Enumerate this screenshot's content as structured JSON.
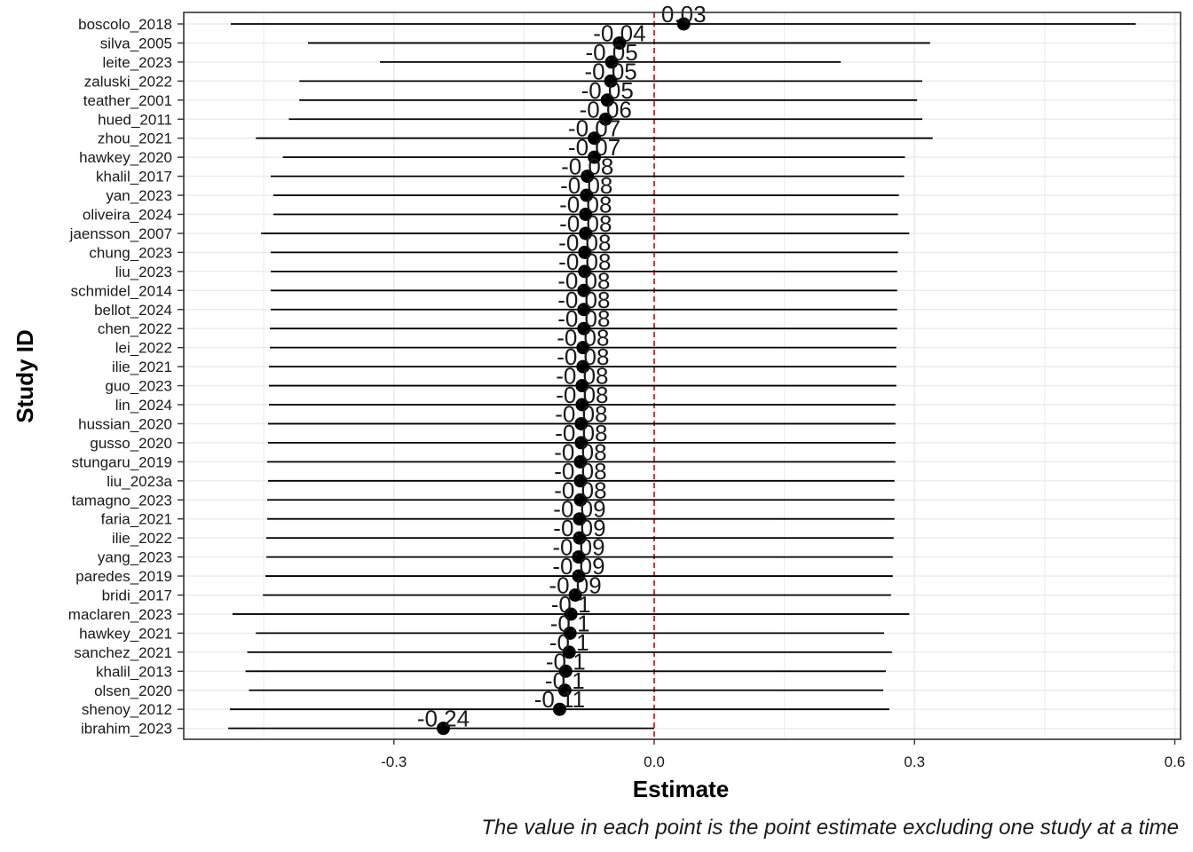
{
  "chart_data": {
    "type": "forest-leave-one-out",
    "xlabel": "Estimate",
    "ylabel": "Study ID",
    "caption": "The value in each point is the point estimate excluding one study at a time",
    "xlim": [
      -0.183,
      0.625
    ],
    "x_ticks": [
      -0.3,
      0.0,
      0.3,
      0.6
    ],
    "x_tick_labels": [
      "-0.3",
      "0.0",
      "0.3",
      "0.6"
    ],
    "reference_line": 0.0,
    "grid": true,
    "colors": {
      "point": "#000000",
      "interval": "#000000",
      "reference": "#e00000",
      "grid": "#ebebeb",
      "panel_border": "#333333"
    },
    "studies": [
      {
        "id": "boscolo_2018",
        "estimate": 0.034,
        "lower": -0.488,
        "upper": 0.555,
        "label": "0.03"
      },
      {
        "id": "silva_2005",
        "estimate": -0.04,
        "lower": -0.399,
        "upper": 0.318,
        "label": "-0.04"
      },
      {
        "id": "leite_2023",
        "estimate": -0.049,
        "lower": -0.316,
        "upper": 0.215,
        "label": "-0.05"
      },
      {
        "id": "zaluski_2022",
        "estimate": -0.05,
        "lower": -0.409,
        "upper": 0.309,
        "label": "-0.05"
      },
      {
        "id": "teather_2001",
        "estimate": -0.054,
        "lower": -0.409,
        "upper": 0.303,
        "label": "-0.05"
      },
      {
        "id": "hued_2011",
        "estimate": -0.056,
        "lower": -0.421,
        "upper": 0.309,
        "label": "-0.06"
      },
      {
        "id": "zhou_2021",
        "estimate": -0.069,
        "lower": -0.459,
        "upper": 0.321,
        "label": "-0.07"
      },
      {
        "id": "hawkey_2020",
        "estimate": -0.069,
        "lower": -0.428,
        "upper": 0.289,
        "label": "-0.07"
      },
      {
        "id": "khalil_2017",
        "estimate": -0.077,
        "lower": -0.442,
        "upper": 0.288,
        "label": "-0.08"
      },
      {
        "id": "yan_2023",
        "estimate": -0.078,
        "lower": -0.439,
        "upper": 0.282,
        "label": "-0.08"
      },
      {
        "id": "oliveira_2024",
        "estimate": -0.079,
        "lower": -0.439,
        "upper": 0.281,
        "label": "-0.08"
      },
      {
        "id": "jaensson_2007",
        "estimate": -0.079,
        "lower": -0.453,
        "upper": 0.294,
        "label": "-0.08"
      },
      {
        "id": "chung_2023",
        "estimate": -0.08,
        "lower": -0.442,
        "upper": 0.281,
        "label": "-0.08"
      },
      {
        "id": "liu_2023",
        "estimate": -0.08,
        "lower": -0.442,
        "upper": 0.28,
        "label": "-0.08"
      },
      {
        "id": "schmidel_2014",
        "estimate": -0.081,
        "lower": -0.442,
        "upper": 0.28,
        "label": "-0.08"
      },
      {
        "id": "bellot_2024",
        "estimate": -0.081,
        "lower": -0.442,
        "upper": 0.28,
        "label": "-0.08"
      },
      {
        "id": "chen_2022",
        "estimate": -0.081,
        "lower": -0.443,
        "upper": 0.28,
        "label": "-0.08"
      },
      {
        "id": "lei_2022",
        "estimate": -0.082,
        "lower": -0.443,
        "upper": 0.279,
        "label": "-0.08"
      },
      {
        "id": "ilie_2021",
        "estimate": -0.082,
        "lower": -0.444,
        "upper": 0.279,
        "label": "-0.08"
      },
      {
        "id": "guo_2023",
        "estimate": -0.083,
        "lower": -0.444,
        "upper": 0.279,
        "label": "-0.08"
      },
      {
        "id": "lin_2024",
        "estimate": -0.083,
        "lower": -0.444,
        "upper": 0.278,
        "label": "-0.08"
      },
      {
        "id": "hussian_2020",
        "estimate": -0.084,
        "lower": -0.445,
        "upper": 0.278,
        "label": "-0.08"
      },
      {
        "id": "gusso_2020",
        "estimate": -0.084,
        "lower": -0.445,
        "upper": 0.278,
        "label": "-0.08"
      },
      {
        "id": "stungaru_2019",
        "estimate": -0.085,
        "lower": -0.446,
        "upper": 0.278,
        "label": "-0.08"
      },
      {
        "id": "liu_2023a",
        "estimate": -0.085,
        "lower": -0.445,
        "upper": 0.277,
        "label": "-0.08"
      },
      {
        "id": "tamagno_2023",
        "estimate": -0.085,
        "lower": -0.446,
        "upper": 0.277,
        "label": "-0.08"
      },
      {
        "id": "faria_2021",
        "estimate": -0.086,
        "lower": -0.446,
        "upper": 0.277,
        "label": "-0.09"
      },
      {
        "id": "ilie_2022",
        "estimate": -0.086,
        "lower": -0.447,
        "upper": 0.276,
        "label": "-0.09"
      },
      {
        "id": "yang_2023",
        "estimate": -0.087,
        "lower": -0.447,
        "upper": 0.275,
        "label": "-0.09"
      },
      {
        "id": "paredes_2019",
        "estimate": -0.087,
        "lower": -0.448,
        "upper": 0.275,
        "label": "-0.09"
      },
      {
        "id": "bridi_2017",
        "estimate": -0.091,
        "lower": -0.451,
        "upper": 0.273,
        "label": "-0.09"
      },
      {
        "id": "maclaren_2023",
        "estimate": -0.096,
        "lower": -0.486,
        "upper": 0.294,
        "label": "-0.1"
      },
      {
        "id": "hawkey_2021",
        "estimate": -0.097,
        "lower": -0.459,
        "upper": 0.265,
        "label": "-0.1"
      },
      {
        "id": "sanchez_2021",
        "estimate": -0.098,
        "lower": -0.469,
        "upper": 0.274,
        "label": "-0.1"
      },
      {
        "id": "khalil_2013",
        "estimate": -0.102,
        "lower": -0.471,
        "upper": 0.267,
        "label": "-0.1"
      },
      {
        "id": "olsen_2020",
        "estimate": -0.103,
        "lower": -0.467,
        "upper": 0.264,
        "label": "-0.1"
      },
      {
        "id": "shenoy_2012",
        "estimate": -0.109,
        "lower": -0.489,
        "upper": 0.271,
        "label": "-0.11"
      },
      {
        "id": "ibrahim_2023",
        "estimate": -0.243,
        "lower": -0.491,
        "upper": 0.0,
        "label": "-0.24"
      }
    ]
  }
}
